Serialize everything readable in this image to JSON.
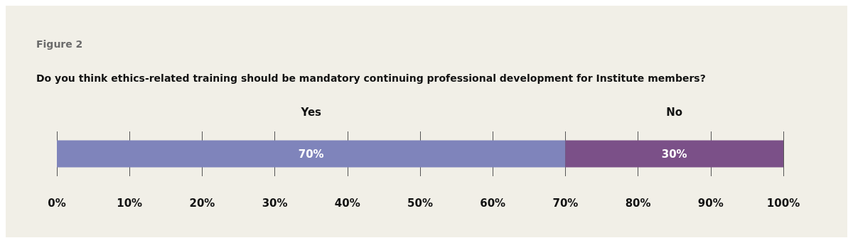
{
  "chart_data": {
    "type": "bar",
    "orientation": "horizontal",
    "stacked": true,
    "title": "Figure 2",
    "subtitle": "Do you think ethics-related training should be mandatory continuing professional development for Institute members?",
    "categories": [
      null
    ],
    "series": [
      {
        "name": "Yes",
        "color": "#7f84bb",
        "values": [
          70
        ],
        "value_labels": [
          "70%"
        ]
      },
      {
        "name": "No",
        "color": "#7b5088",
        "values": [
          30
        ],
        "value_labels": [
          "30%"
        ]
      }
    ],
    "xlim": [
      0,
      100
    ],
    "xticks": [
      {
        "value": 0,
        "label": "0%"
      },
      {
        "value": 10,
        "label": "10%"
      },
      {
        "value": 20,
        "label": "20%"
      },
      {
        "value": 30,
        "label": "30%"
      },
      {
        "value": 40,
        "label": "40%"
      },
      {
        "value": 50,
        "label": "50%"
      },
      {
        "value": 60,
        "label": "60%"
      },
      {
        "value": 70,
        "label": "70%"
      },
      {
        "value": 80,
        "label": "80%"
      },
      {
        "value": 90,
        "label": "90%"
      },
      {
        "value": 100,
        "label": "100%"
      }
    ],
    "grid": "x",
    "tick_labels": "x"
  }
}
